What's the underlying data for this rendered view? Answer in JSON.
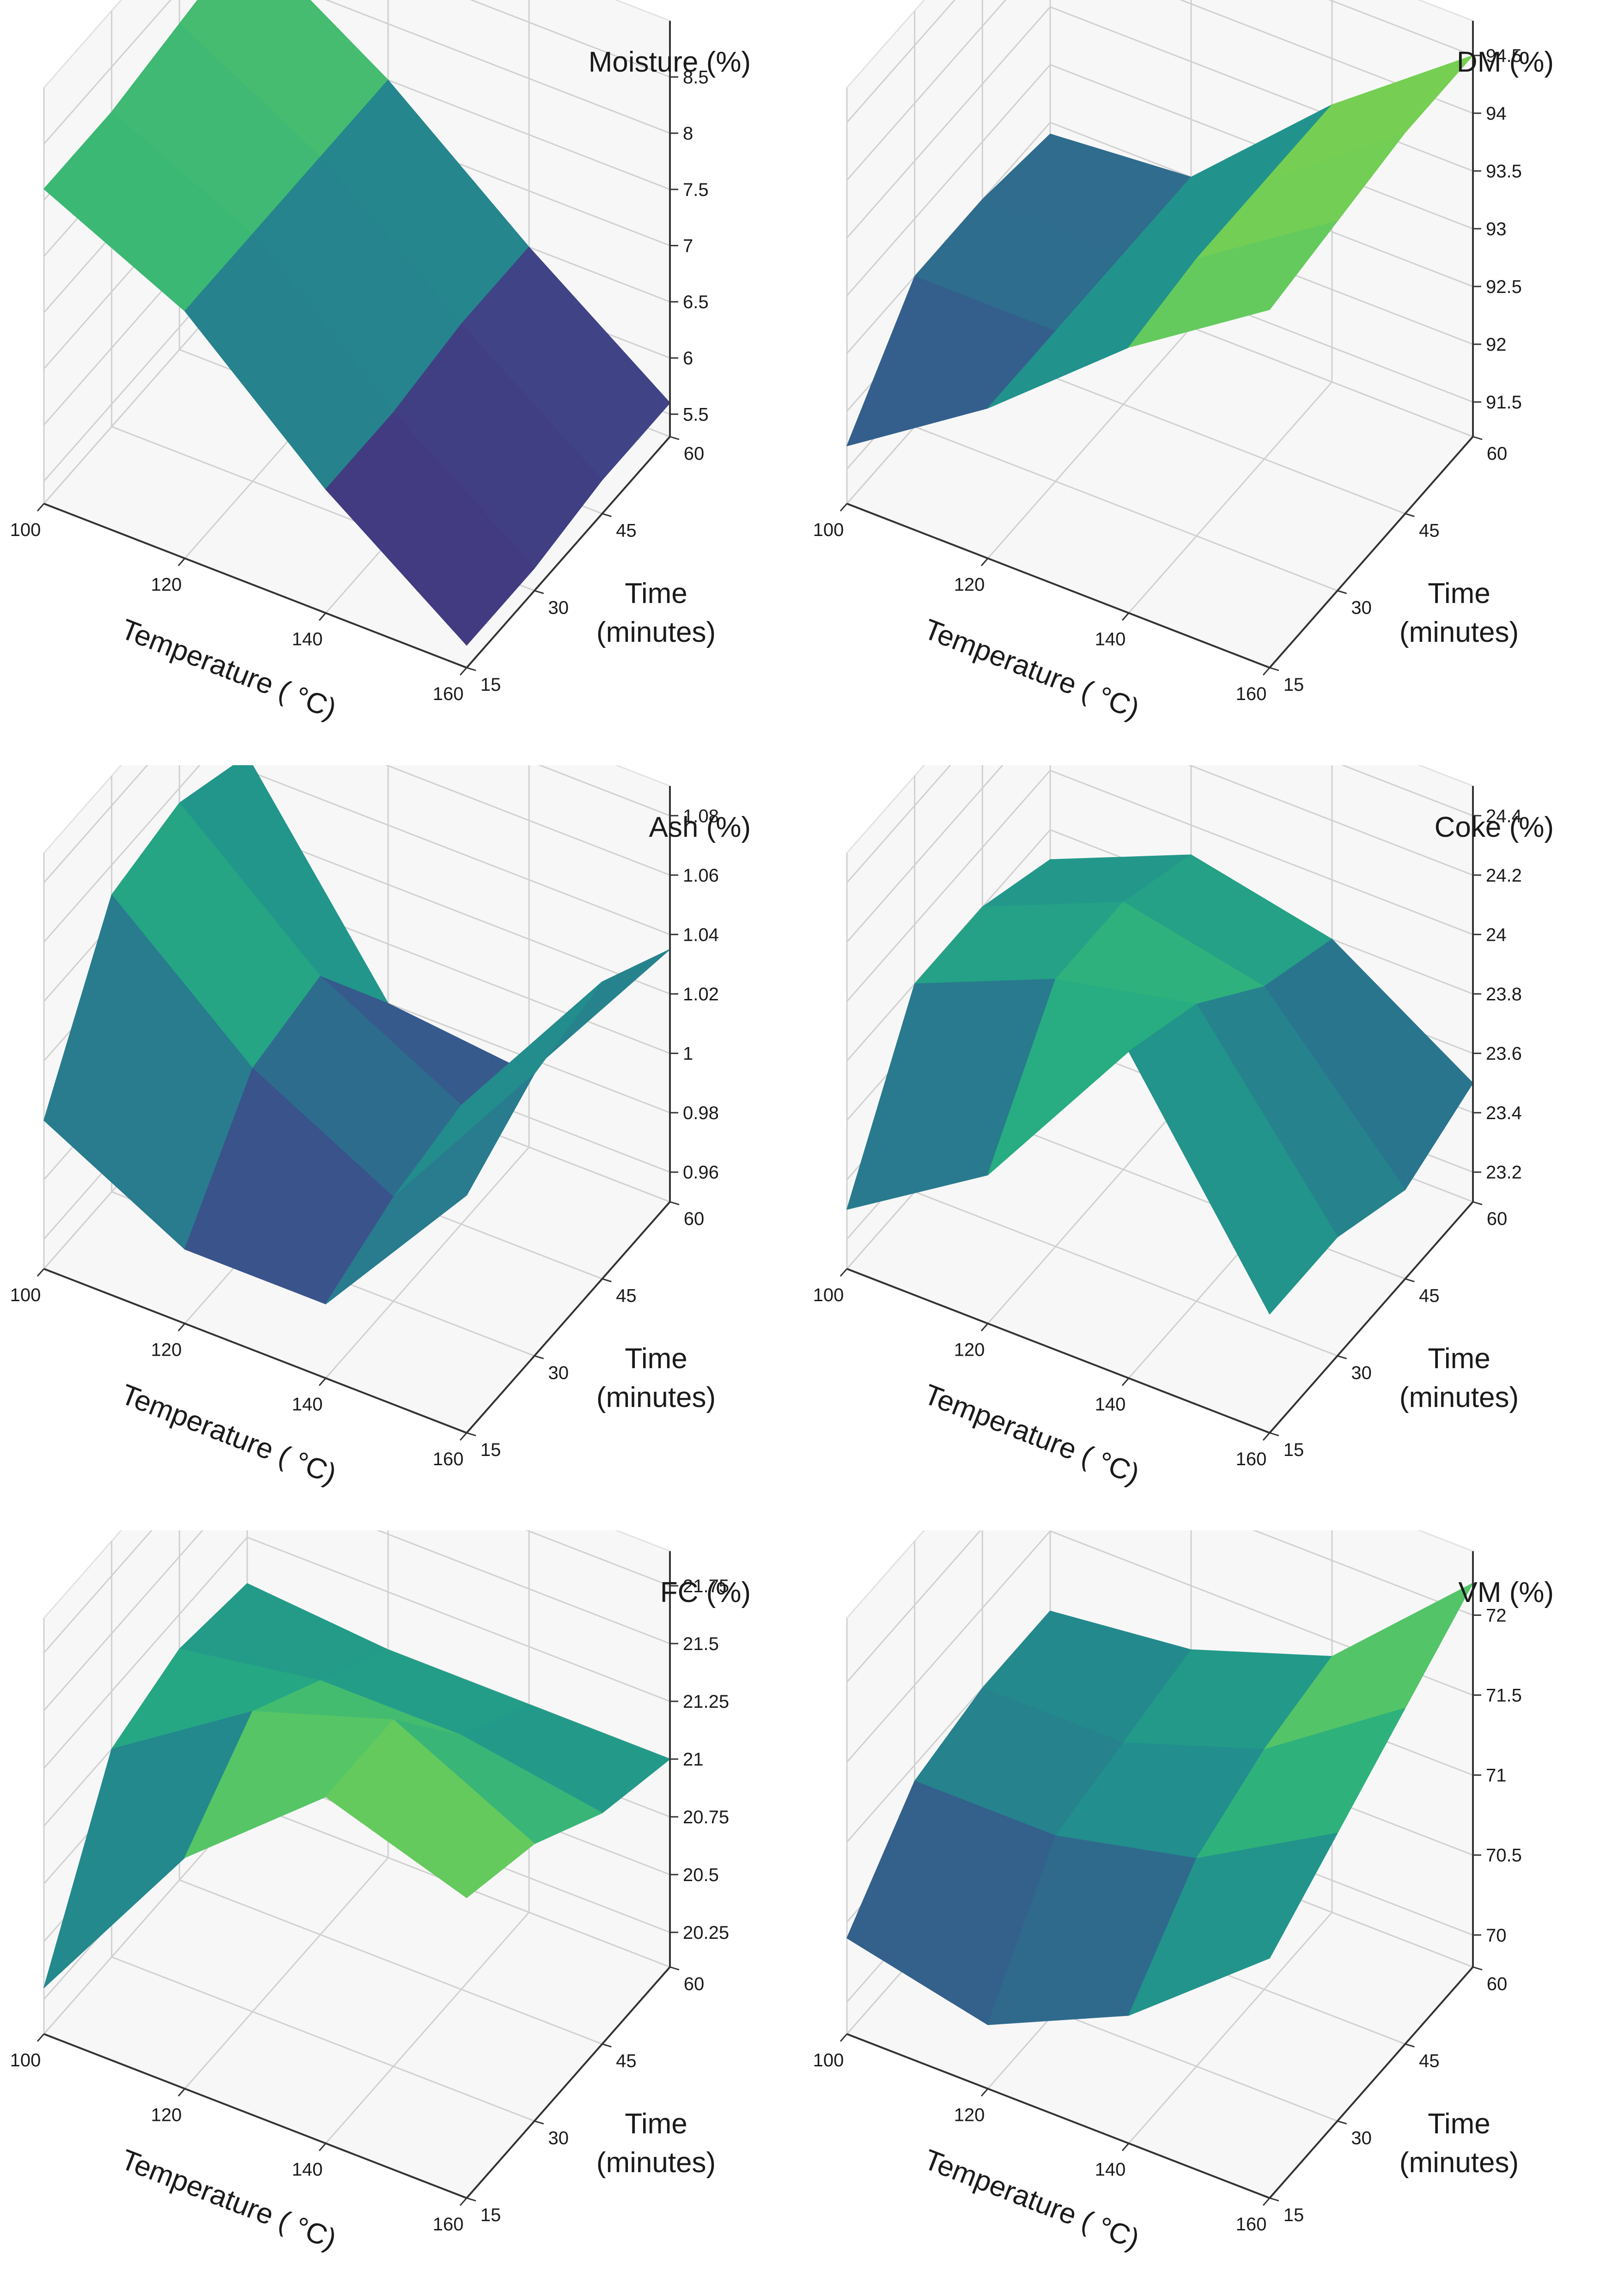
{
  "figure": {
    "colormap": [
      "#440154",
      "#472c7a",
      "#3b518b",
      "#2c718e",
      "#21908d",
      "#27ad81",
      "#5cc863",
      "#aadc32",
      "#fde725"
    ]
  },
  "chart_data": [
    {
      "type": "surface3d",
      "title": "Moisture (%)",
      "xlabel": "Temperature ( °C)",
      "ylabel": "Time\n(minutes)",
      "x": [
        100,
        120,
        140,
        160
      ],
      "y": [
        15,
        30,
        45,
        60
      ],
      "xticks": [
        "100",
        "120",
        "140",
        "160"
      ],
      "yticks": [
        "15",
        "30",
        "45",
        "60"
      ],
      "zticks": [
        5.5,
        6.0,
        6.5,
        7.0,
        7.5,
        8.0,
        8.5
      ],
      "zlim": [
        5.3,
        9.0
      ],
      "z": [
        [
          8.1,
          8.1,
          8.2,
          8.3
        ],
        [
          7.5,
          7.5,
          7.5,
          7.5
        ],
        [
          6.4,
          6.4,
          6.5,
          6.5
        ],
        [
          5.5,
          5.5,
          5.6,
          5.6
        ]
      ]
    },
    {
      "type": "surface3d",
      "title": "DM (%)",
      "xlabel": "Temperature ( °C)",
      "ylabel": "Time\n(minutes)",
      "x": [
        100,
        120,
        140,
        160
      ],
      "y": [
        15,
        30,
        45,
        60
      ],
      "xticks": [
        "100",
        "120",
        "140",
        "160"
      ],
      "yticks": [
        "15",
        "30",
        "45",
        "60"
      ],
      "zticks": [
        91.5,
        92.0,
        92.5,
        93.0,
        93.5,
        94.0,
        94.5
      ],
      "zlim": [
        91.2,
        94.8
      ],
      "z": [
        [
          91.7,
          92.5,
          92.5,
          92.4
        ],
        [
          92.5,
          92.5,
          92.5,
          92.5
        ],
        [
          93.5,
          93.6,
          93.6,
          93.6
        ],
        [
          94.3,
          94.4,
          94.5,
          94.5
        ]
      ]
    },
    {
      "type": "surface3d",
      "title": "Ash (%)",
      "xlabel": "Temperature ( °C)",
      "ylabel": "Time\n(minutes)",
      "x": [
        100,
        120,
        140,
        160
      ],
      "y": [
        15,
        30,
        45,
        60
      ],
      "xticks": [
        "100",
        "120",
        "140",
        "160"
      ],
      "yticks": [
        "15",
        "30",
        "45",
        "60"
      ],
      "zticks": [
        0.96,
        0.98,
        1.0,
        1.02,
        1.04,
        1.06,
        1.08
      ],
      "zlim": [
        0.95,
        1.09
      ],
      "z": [
        [
          1.0,
          1.05,
          1.055,
          1.045
        ],
        [
          0.975,
          1.01,
          1.015,
          0.98
        ],
        [
          0.975,
          0.985,
          0.99,
          0.975
        ],
        [
          1.03,
          1.045,
          1.05,
          1.035
        ]
      ]
    },
    {
      "type": "surface3d",
      "title": "Coke (%)",
      "xlabel": "Temperature ( °C)",
      "ylabel": "Time\n(minutes)",
      "x": [
        100,
        120,
        140,
        160
      ],
      "y": [
        15,
        30,
        45,
        60
      ],
      "xticks": [
        "100",
        "120",
        "140",
        "160"
      ],
      "yticks": [
        "15",
        "30",
        "45",
        "60"
      ],
      "zticks": [
        23.2,
        23.4,
        23.6,
        23.8,
        24.0,
        24.2,
        24.4
      ],
      "zlim": [
        23.1,
        24.5
      ],
      "z": [
        [
          23.3,
          23.8,
          23.8,
          23.7
        ],
        [
          23.6,
          24.0,
          24.0,
          23.9
        ],
        [
          24.2,
          24.1,
          23.9,
          23.8
        ],
        [
          23.5,
          23.5,
          23.4,
          23.5
        ]
      ]
    },
    {
      "type": "surface3d",
      "title": "FC (%)",
      "xlabel": "Temperature ( °C)",
      "ylabel": "Time\n(minutes)",
      "x": [
        100,
        120,
        140,
        160
      ],
      "y": [
        15,
        30,
        45,
        60
      ],
      "xticks": [
        "100",
        "120",
        "140",
        "160"
      ],
      "yticks": [
        "15",
        "30",
        "45",
        "60"
      ],
      "zticks": [
        20.25,
        20.5,
        20.75,
        21.0,
        21.25,
        21.5,
        21.75
      ],
      "zlim": [
        20.1,
        21.9
      ],
      "z": [
        [
          20.3,
          21.0,
          21.1,
          21.05
        ],
        [
          21.1,
          21.4,
          21.2,
          21.0
        ],
        [
          21.6,
          21.6,
          21.2,
          21.0
        ],
        [
          21.4,
          21.3,
          21.1,
          21.0
        ]
      ]
    },
    {
      "type": "surface3d",
      "title": "VM (%)",
      "xlabel": "Temperature ( °C)",
      "ylabel": "Time\n(minutes)",
      "x": [
        100,
        120,
        140,
        160
      ],
      "y": [
        15,
        30,
        45,
        60
      ],
      "xticks": [
        "100",
        "120",
        "140",
        "160"
      ],
      "yticks": [
        "15",
        "30",
        "45",
        "60"
      ],
      "zticks": [
        70.0,
        70.5,
        71.0,
        71.5,
        72.0
      ],
      "zlim": [
        69.8,
        72.4
      ],
      "z": [
        [
          70.4,
          70.9,
          71.0,
          71.0
        ],
        [
          70.2,
          70.9,
          71.0,
          71.1
        ],
        [
          70.6,
          71.1,
          71.3,
          71.4
        ],
        [
          71.3,
          71.6,
          71.9,
          72.2
        ]
      ]
    }
  ]
}
